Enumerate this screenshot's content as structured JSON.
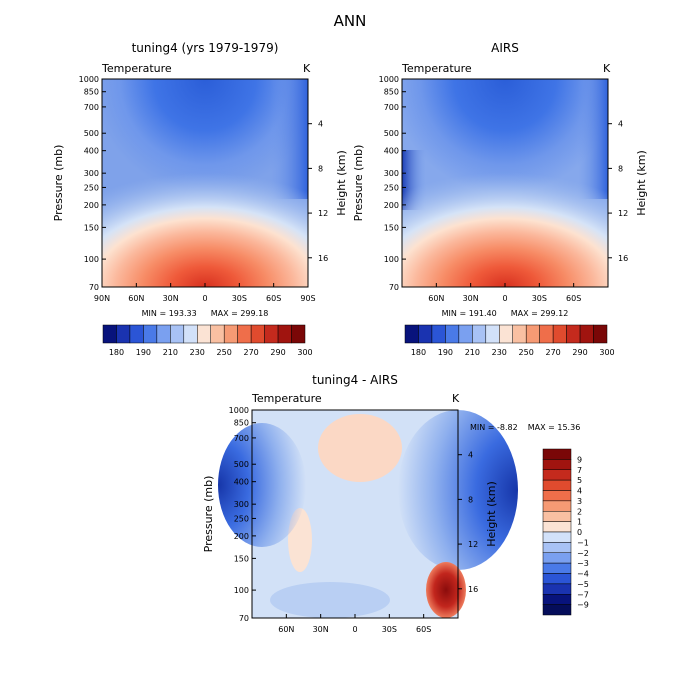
{
  "title": "ANN",
  "chart_data": [
    {
      "type": "heatmap",
      "subtitle": "tuning4 (yrs 1979-1979)",
      "left_label": "Temperature",
      "units": "K",
      "ylabel": "Pressure (mb)",
      "ylabel_right": "Height (km)",
      "x_ticks": [
        "90N",
        "60N",
        "30N",
        "0",
        "30S",
        "60S",
        "90S"
      ],
      "y_ticks": [
        "70",
        "100",
        "150",
        "200",
        "250",
        "300",
        "400",
        "500",
        "700",
        "850",
        "1000"
      ],
      "height_ticks": [
        "4",
        "8",
        "12",
        "16"
      ],
      "min_text": "MIN = 193.33",
      "max_text": "MAX = 299.18",
      "colorbar_labels": [
        "180",
        "190",
        "210",
        "230",
        "250",
        "270",
        "290",
        "300"
      ],
      "xlim": [
        90,
        -90
      ],
      "ylim": [
        1000,
        70
      ],
      "colormap": "blue-white-red"
    },
    {
      "type": "heatmap",
      "subtitle": "AIRS",
      "left_label": "Temperature",
      "units": "K",
      "ylabel": "Pressure (mb)",
      "ylabel_right": "Height (km)",
      "x_ticks": [
        "60N",
        "30N",
        "0",
        "30S",
        "60S"
      ],
      "y_ticks": [
        "70",
        "100",
        "150",
        "200",
        "250",
        "300",
        "400",
        "500",
        "700",
        "850",
        "1000"
      ],
      "height_ticks": [
        "4",
        "8",
        "12",
        "16"
      ],
      "min_text": "MIN = 191.40",
      "max_text": "MAX = 299.12",
      "colorbar_labels": [
        "180",
        "190",
        "210",
        "230",
        "250",
        "270",
        "290",
        "300"
      ],
      "xlim": [
        90,
        -90
      ],
      "ylim": [
        1000,
        70
      ],
      "colormap": "blue-white-red"
    },
    {
      "type": "heatmap",
      "subtitle": "tuning4 - AIRS",
      "left_label": "Temperature",
      "units": "K",
      "ylabel": "Pressure (mb)",
      "ylabel_right": "Height (km)",
      "x_ticks": [
        "60N",
        "30N",
        "0",
        "30S",
        "60S"
      ],
      "y_ticks": [
        "70",
        "100",
        "150",
        "200",
        "250",
        "300",
        "400",
        "500",
        "700",
        "850",
        "1000"
      ],
      "height_ticks": [
        "4",
        "8",
        "12",
        "16"
      ],
      "min_text": "MIN = -8.82",
      "max_text": "MAX = 15.36",
      "colorbar_labels": [
        "9",
        "7",
        "5",
        "4",
        "3",
        "2",
        "1",
        "0",
        "-1",
        "-2",
        "-3",
        "-4",
        "-5",
        "-7",
        "-9"
      ],
      "xlim": [
        90,
        -90
      ],
      "ylim": [
        1000,
        70
      ],
      "colormap": "blue-white-red"
    }
  ]
}
